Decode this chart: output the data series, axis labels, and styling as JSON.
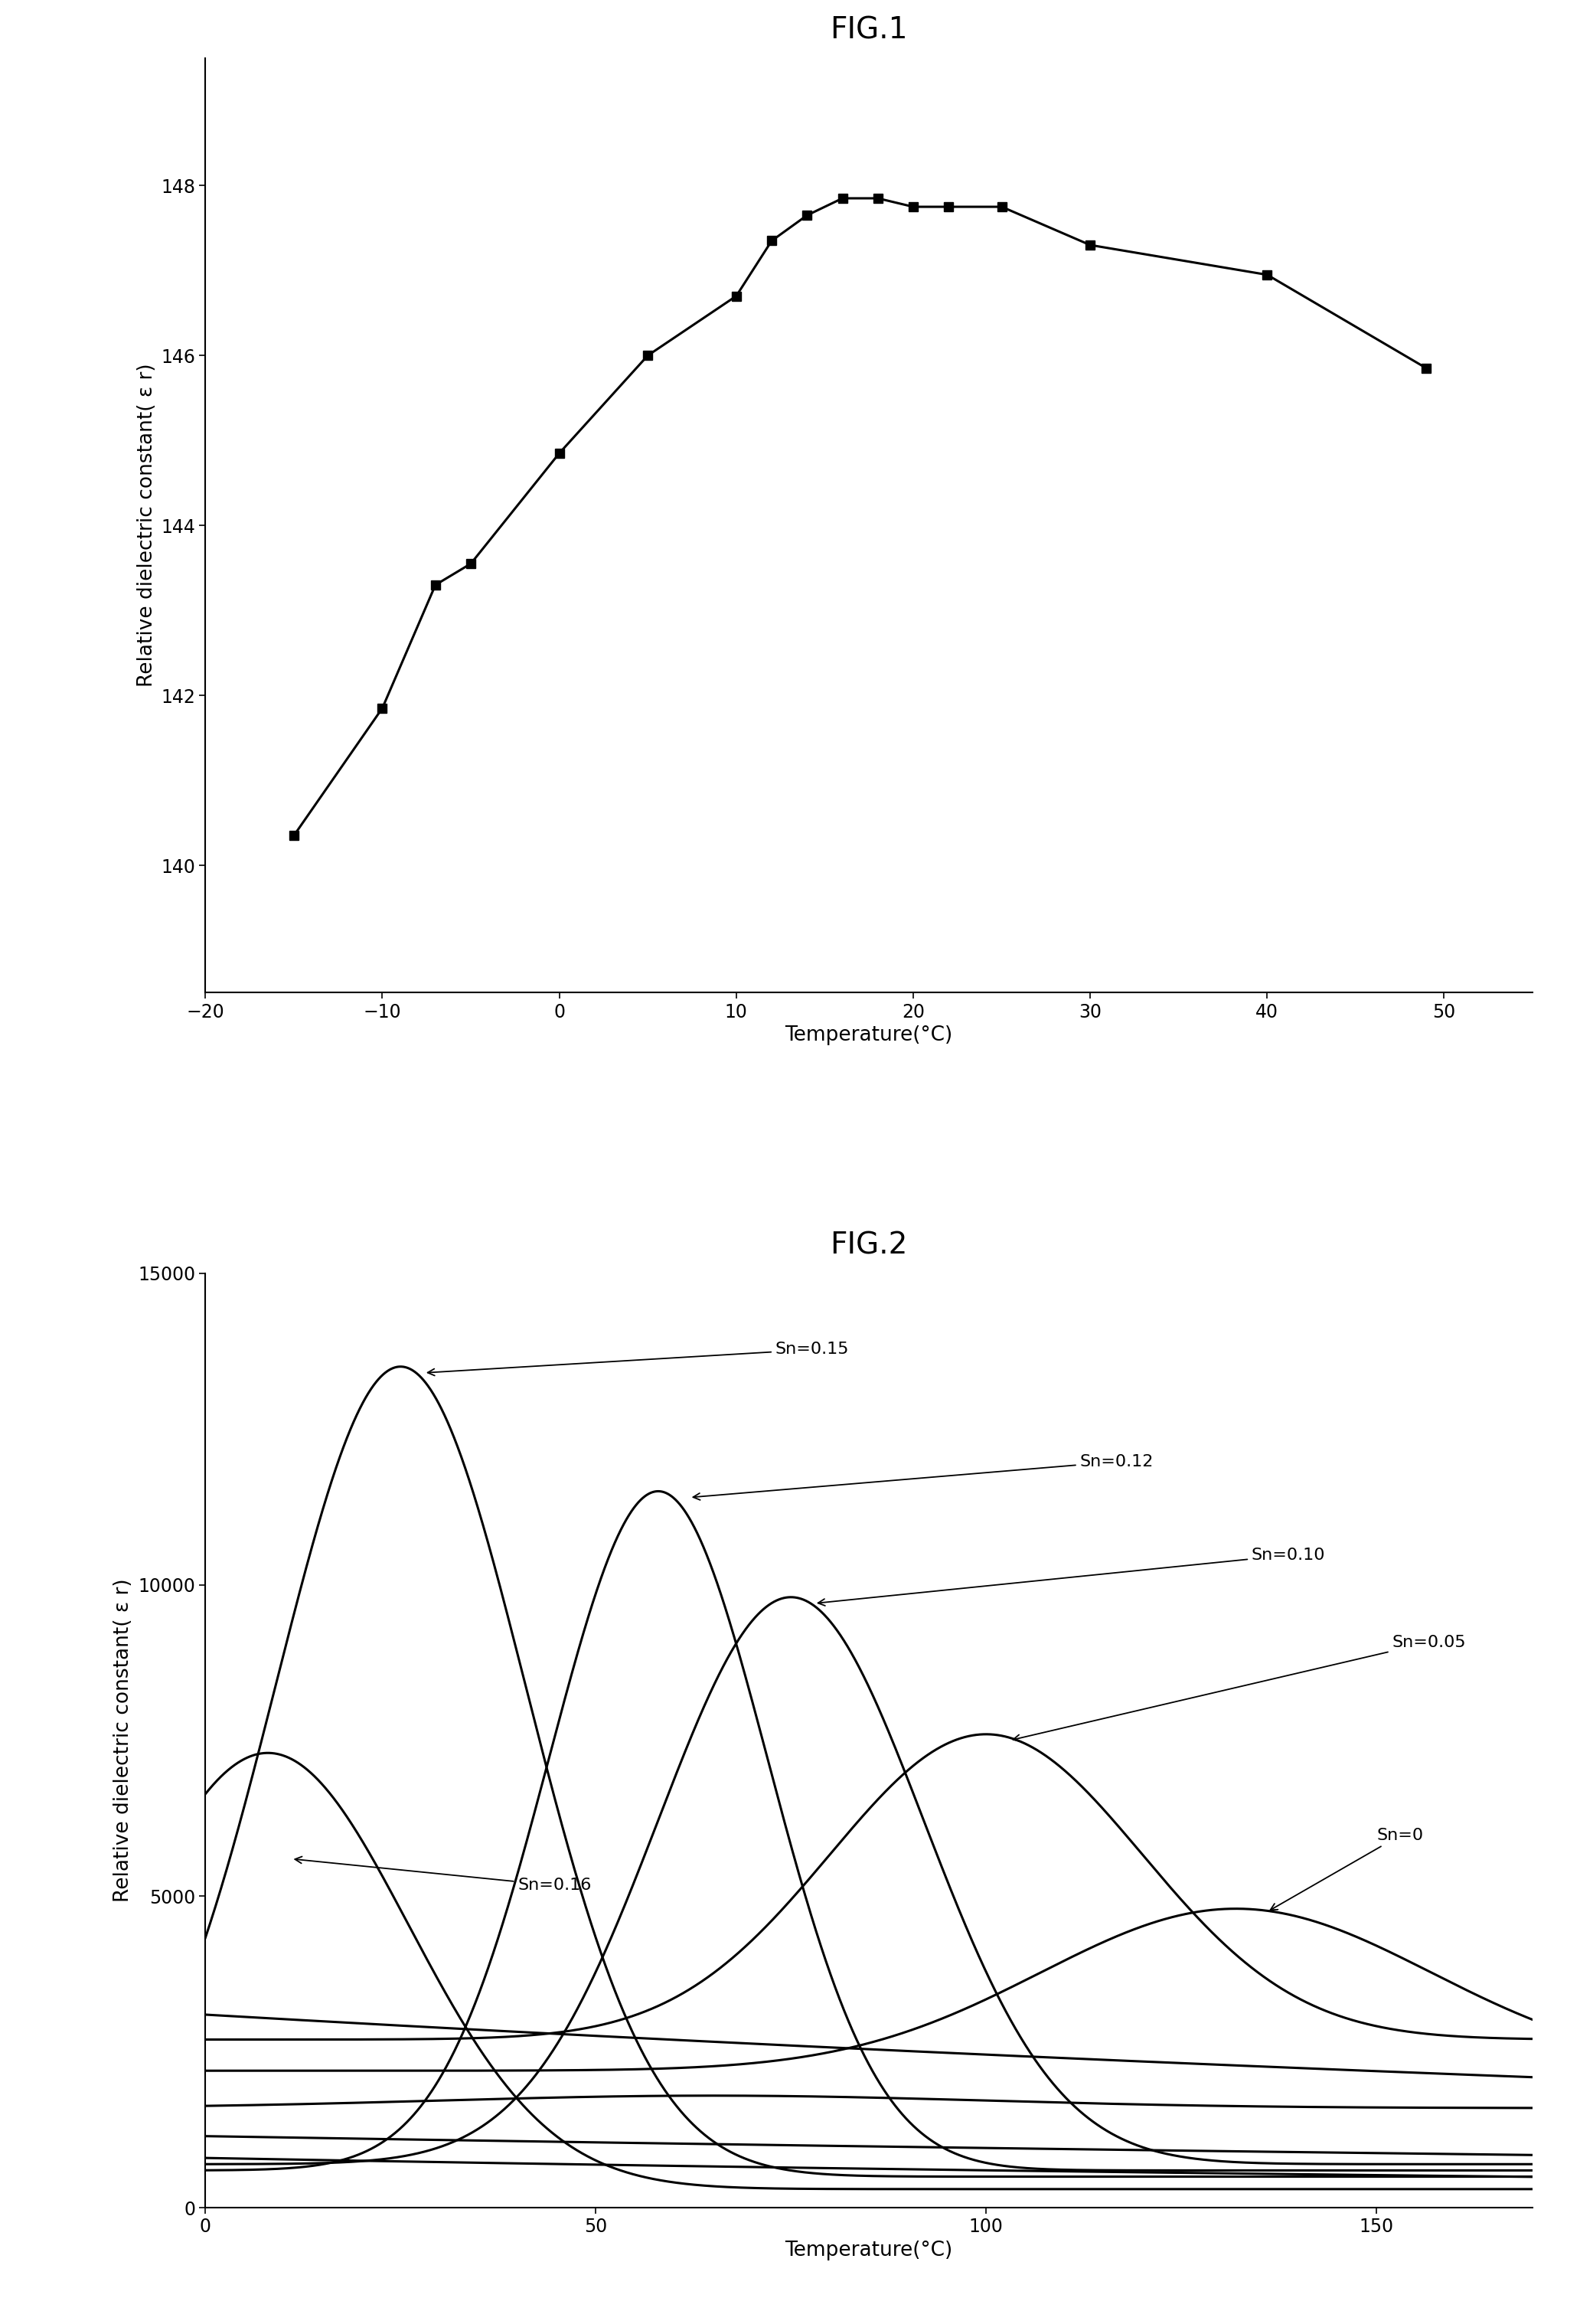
{
  "fig1_title": "FIG.1",
  "fig1_xlabel": "Temperature(°C)",
  "fig1_ylabel": "Relative dielectric constant( ε r)",
  "fig1_xlim": [
    -20,
    55
  ],
  "fig1_ylim": [
    138.5,
    149.5
  ],
  "fig1_xticks": [
    -20,
    -10,
    0,
    10,
    20,
    30,
    40,
    50
  ],
  "fig1_yticks": [
    140,
    142,
    144,
    146,
    148
  ],
  "fig1_x": [
    -15,
    -10,
    -7,
    -5,
    0,
    5,
    10,
    12,
    14,
    16,
    18,
    20,
    22,
    25,
    30,
    40,
    49
  ],
  "fig1_y": [
    140.35,
    141.85,
    143.3,
    143.55,
    144.85,
    146.0,
    146.7,
    147.35,
    147.65,
    147.85,
    147.85,
    147.75,
    147.75,
    147.75,
    147.3,
    146.95,
    145.85
  ],
  "fig2_title": "FIG.2",
  "fig2_xlabel": "Temperature(°C)",
  "fig2_ylabel": "Relative dielectric constant( ε r)",
  "fig2_xlim": [
    0,
    170
  ],
  "fig2_ylim": [
    0,
    15000
  ],
  "fig2_xticks": [
    0,
    50,
    100,
    150
  ],
  "fig2_yticks": [
    0,
    5000,
    10000,
    15000
  ],
  "background_color": "#ffffff",
  "line_color": "#000000",
  "marker": "s",
  "markersize": 9,
  "linewidth": 2.2,
  "title_fontsize": 28,
  "label_fontsize": 19,
  "tick_fontsize": 17,
  "annotation_fontsize": 16
}
